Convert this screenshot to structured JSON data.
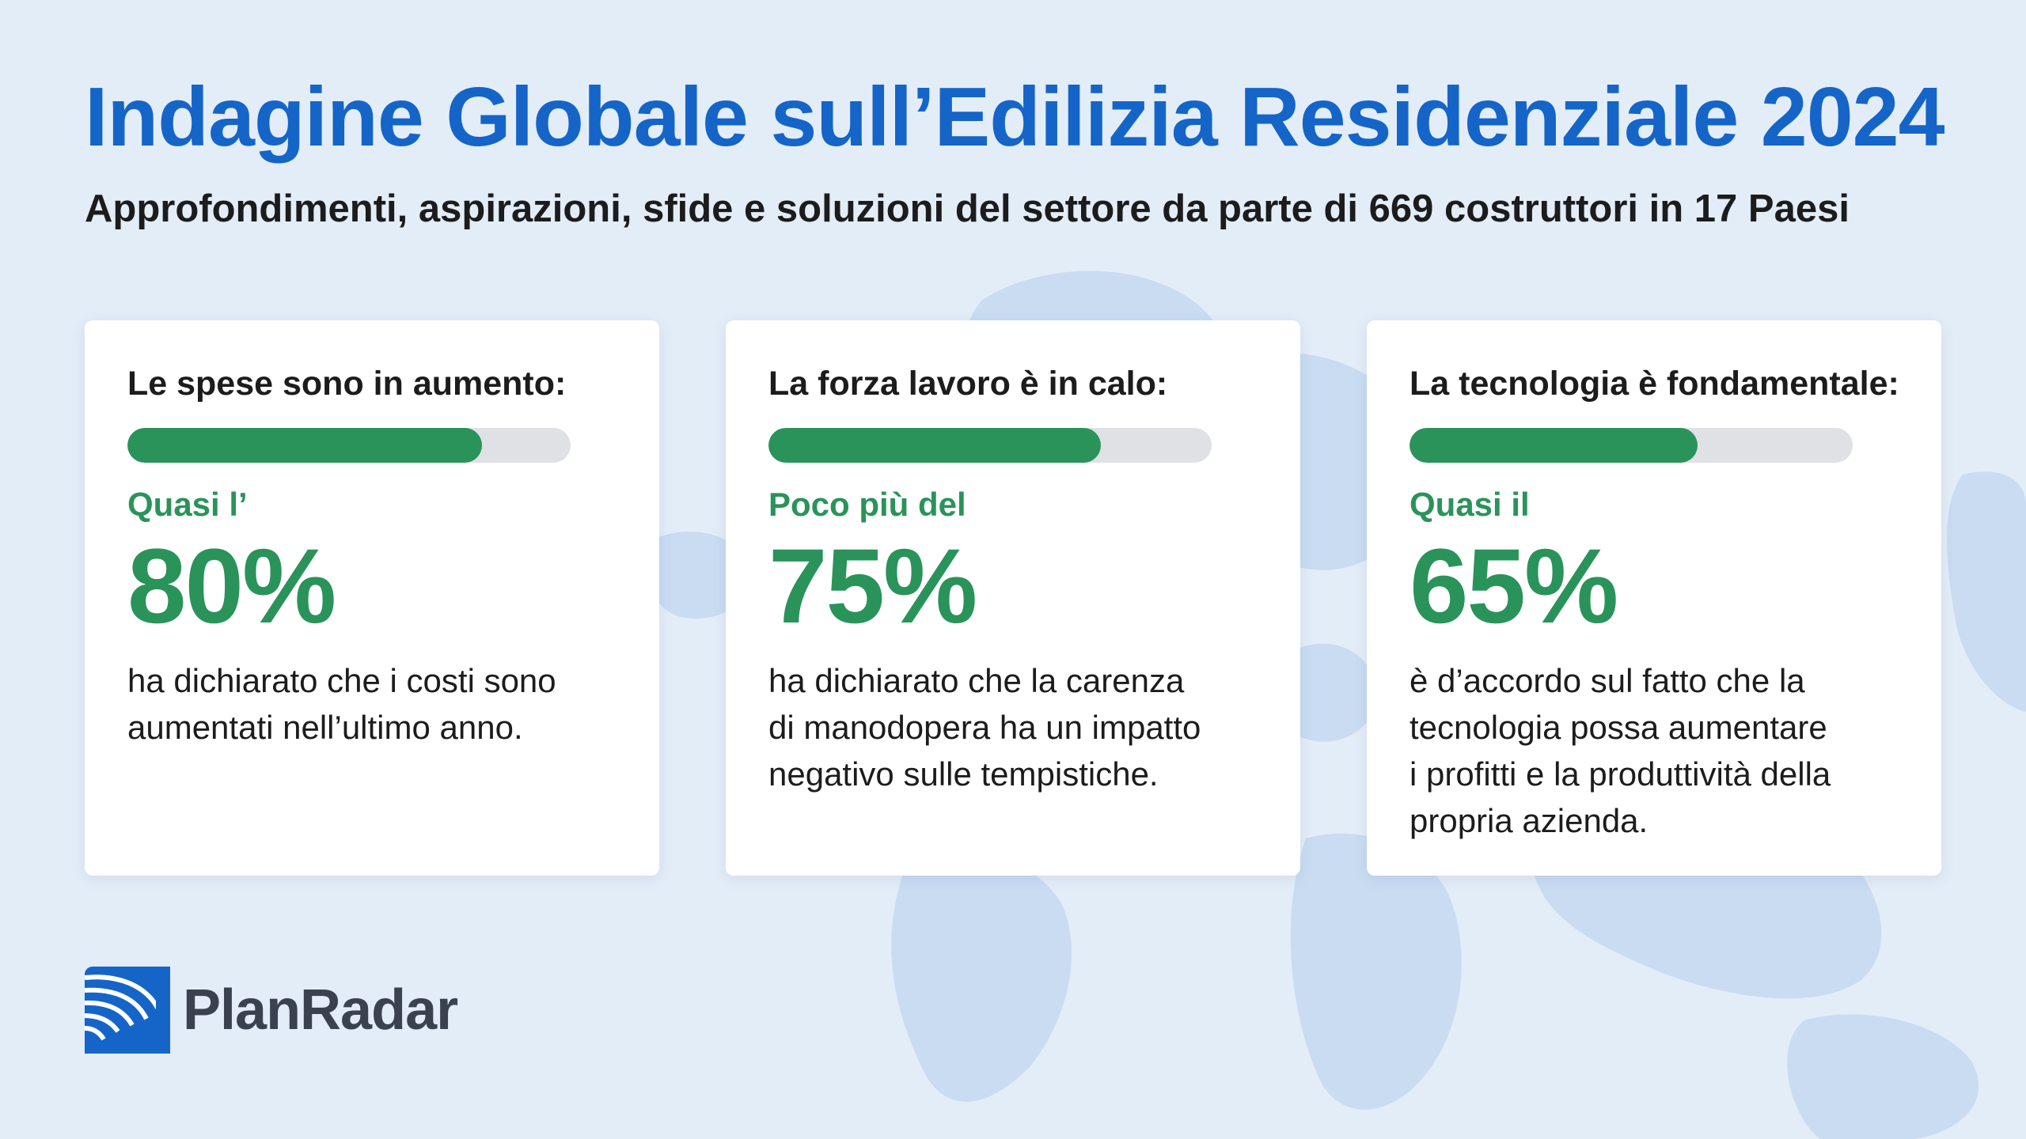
{
  "header": {
    "title": "Indagine Globale sull’Edilizia Residenziale 2024",
    "subtitle": "Approfondimenti, aspirazioni, sfide e soluzioni del settore da parte di 669 costruttori in 17 Paesi"
  },
  "cards": [
    {
      "heading": "Le spese sono in aumento:",
      "progress_percent": 80,
      "qualifier": "Quasi l’",
      "value": "80%",
      "lines": [
        "ha dichiarato che i costi sono",
        "aumentati nell’ultimo anno."
      ]
    },
    {
      "heading": "La forza lavoro è in calo:",
      "progress_percent": 75,
      "qualifier": "Poco più del",
      "value": "75%",
      "lines": [
        "ha dichiarato che la carenza",
        "di manodopera ha un impatto",
        "negativo sulle tempistiche."
      ]
    },
    {
      "heading": "La tecnologia è fondamentale:",
      "progress_percent": 65,
      "qualifier": "Quasi il",
      "value": "65%",
      "lines": [
        "è d’accordo sul fatto che la",
        "tecnologia possa aumentare",
        "i profitti e la produttività della",
        "propria azienda."
      ]
    }
  ],
  "logo": {
    "text": "PlanRadar",
    "icon": "radar-waves-icon"
  },
  "colors": {
    "title_blue": "#1565c8",
    "accent_green": "#2a935a",
    "track_gray": "#dfe1e5",
    "background": "#e3edf8",
    "map": "#c9dcf2"
  }
}
